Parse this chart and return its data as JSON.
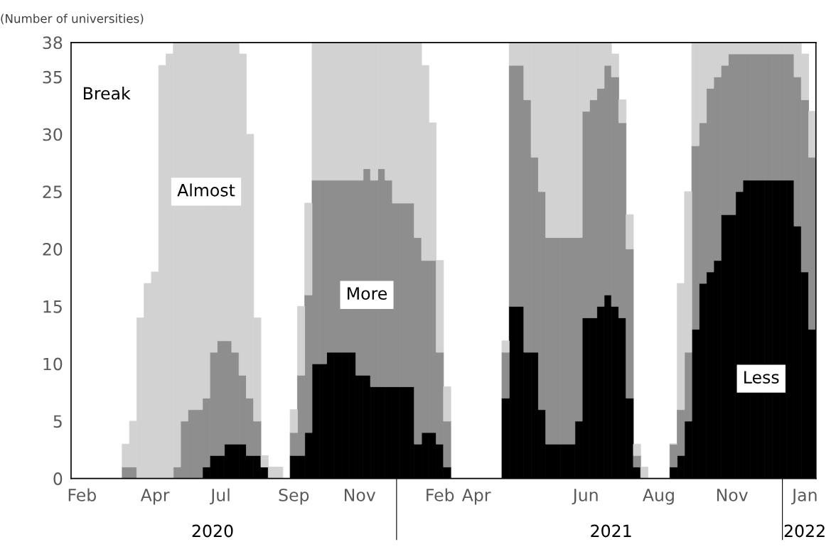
{
  "chart_data": {
    "type": "bar",
    "stacked": true,
    "ylabel": "(Number of universities)",
    "categories": [
      null,
      "Feb",
      null,
      null,
      null,
      null,
      null,
      null,
      null,
      null,
      null,
      "Apr",
      null,
      null,
      null,
      null,
      null,
      null,
      null,
      null,
      "Jul",
      null,
      null,
      null,
      null,
      null,
      null,
      null,
      null,
      null,
      "Sep",
      null,
      null,
      null,
      null,
      null,
      null,
      null,
      null,
      "Nov",
      null,
      null,
      null,
      null,
      null,
      null,
      null,
      null,
      null,
      null,
      "Feb",
      null,
      null,
      null,
      null,
      "Apr",
      null,
      null,
      null,
      null,
      null,
      null,
      null,
      null,
      null,
      null,
      null,
      null,
      null,
      null,
      "Jun",
      null,
      null,
      null,
      null,
      null,
      null,
      null,
      null,
      null,
      "Aug",
      null,
      null,
      null,
      null,
      null,
      null,
      null,
      null,
      null,
      "Nov",
      null,
      null,
      null,
      null,
      null,
      null,
      null,
      null,
      null,
      "Jan",
      null
    ],
    "series": [
      {
        "name": "Less",
        "color": "#000000",
        "values": [
          0,
          0,
          0,
          0,
          0,
          0,
          0,
          0,
          0,
          0,
          0,
          0,
          0,
          0,
          0,
          0,
          0,
          0,
          1,
          2,
          2,
          3,
          3,
          3,
          2,
          2,
          1,
          0,
          0,
          0,
          2,
          2,
          4,
          10,
          10,
          11,
          11,
          11,
          11,
          9,
          9,
          8,
          8,
          8,
          8,
          8,
          8,
          3,
          4,
          4,
          3,
          1,
          0,
          0,
          0,
          0,
          0,
          0,
          0,
          7,
          15,
          15,
          11,
          11,
          6,
          3,
          3,
          3,
          3,
          5,
          14,
          14,
          15,
          16,
          15,
          14,
          7,
          1,
          0,
          0,
          0,
          0,
          1,
          2,
          5,
          13,
          17,
          18,
          19,
          23,
          23,
          25,
          26,
          26,
          26,
          26,
          26,
          26,
          26,
          22,
          18,
          13
        ]
      },
      {
        "name": "More",
        "color": "#8e8e8e",
        "values": [
          0,
          0,
          0,
          0,
          0,
          0,
          0,
          1,
          1,
          0,
          0,
          0,
          0,
          0,
          1,
          5,
          6,
          6,
          6,
          9,
          10,
          9,
          8,
          6,
          5,
          3,
          0,
          0,
          0,
          0,
          2,
          7,
          12,
          16,
          16,
          15,
          15,
          15,
          15,
          17,
          18,
          18,
          19,
          18,
          16,
          16,
          16,
          18,
          15,
          15,
          8,
          4,
          0,
          0,
          0,
          0,
          0,
          0,
          0,
          4,
          21,
          21,
          22,
          17,
          19,
          18,
          18,
          18,
          18,
          16,
          18,
          19,
          19,
          20,
          20,
          17,
          13,
          1,
          0,
          0,
          0,
          0,
          2,
          4,
          6,
          16,
          14,
          16,
          16,
          13,
          14,
          12,
          11,
          11,
          11,
          11,
          11,
          11,
          11,
          13,
          15,
          15
        ]
      },
      {
        "name": "Almost",
        "color": "#d2d2d2",
        "values": [
          0,
          0,
          0,
          0,
          0,
          0,
          0,
          2,
          4,
          14,
          17,
          18,
          36,
          37,
          37,
          33,
          32,
          32,
          31,
          27,
          26,
          26,
          27,
          28,
          23,
          9,
          1,
          1,
          1,
          0,
          2,
          6,
          8,
          12,
          12,
          12,
          12,
          12,
          12,
          12,
          11,
          12,
          11,
          12,
          14,
          14,
          14,
          17,
          17,
          12,
          8,
          3,
          0,
          0,
          0,
          0,
          0,
          0,
          0,
          1,
          2,
          2,
          5,
          10,
          13,
          17,
          17,
          17,
          17,
          17,
          6,
          5,
          4,
          2,
          2,
          2,
          3,
          1,
          1,
          0,
          0,
          0,
          0,
          11,
          14,
          9,
          7,
          4,
          3,
          2,
          1,
          1,
          1,
          1,
          1,
          1,
          1,
          1,
          1,
          3,
          4,
          4
        ]
      }
    ],
    "ylim": [
      0,
      38
    ],
    "yticks": [
      0,
      5,
      10,
      15,
      20,
      25,
      30,
      35,
      38
    ],
    "annotations": [
      "Break",
      "2020",
      "2021",
      "2022"
    ]
  }
}
